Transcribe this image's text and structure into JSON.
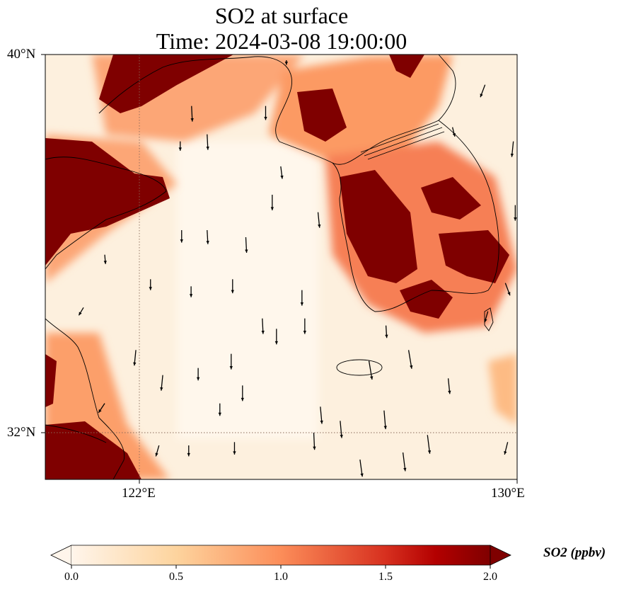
{
  "title": {
    "line1": "SO2 at surface",
    "line2": "Time: 2024-03-08 19:00:00"
  },
  "map": {
    "extent_lon": [
      120,
      130
    ],
    "extent_lat": [
      31,
      40
    ],
    "lat_labels": [
      "40°N",
      "32°N"
    ],
    "lon_labels": [
      "122°E",
      "130°E"
    ],
    "gridlines": {
      "lon": 122,
      "lat": 32
    },
    "background_color": "#fdf0de"
  },
  "colorbar": {
    "label": "SO2 (ppbv)",
    "ticks": [
      "0.0",
      "0.5",
      "1.0",
      "1.5",
      "2.0"
    ],
    "range": [
      0,
      2
    ],
    "extend": "both",
    "colormap": [
      "#fff5eb",
      "#fdd49e",
      "#fc8d59",
      "#d7301f",
      "#b30000",
      "#7f0000"
    ]
  },
  "chart_data": {
    "type": "map-vector-field",
    "variable": "SO2",
    "units": "ppbv",
    "wind_arrows": [
      [
        123.1,
        38.91,
        0.05,
        -1
      ],
      [
        123.43,
        38.31,
        0.05,
        -1
      ],
      [
        122.86,
        38.16,
        0,
        -0.6
      ],
      [
        124.67,
        38.91,
        0,
        -0.9
      ],
      [
        124.99,
        37.63,
        0.1,
        -0.8
      ],
      [
        124.81,
        37.03,
        0,
        -1
      ],
      [
        125.78,
        36.66,
        0.1,
        -1
      ],
      [
        122.89,
        36.28,
        0,
        -0.8
      ],
      [
        123.43,
        36.28,
        0.05,
        -0.9
      ],
      [
        124.25,
        36.13,
        0.05,
        -1
      ],
      [
        121.26,
        35.76,
        0.05,
        -0.6
      ],
      [
        122.23,
        35.24,
        0,
        -0.7
      ],
      [
        123.09,
        35.09,
        0,
        -0.7
      ],
      [
        123.97,
        35.24,
        0,
        -0.9
      ],
      [
        120.81,
        34.64,
        -0.3,
        -0.5
      ],
      [
        125.44,
        35.01,
        0,
        -1
      ],
      [
        124.6,
        34.41,
        0.05,
        -1
      ],
      [
        124.9,
        34.19,
        0,
        -1
      ],
      [
        125.5,
        34.41,
        0,
        -1
      ],
      [
        121.92,
        33.74,
        -0.1,
        -1
      ],
      [
        123.24,
        33.36,
        0,
        -0.8
      ],
      [
        123.94,
        33.66,
        0,
        -1
      ],
      [
        122.49,
        33.21,
        -0.1,
        -1
      ],
      [
        124.18,
        32.99,
        0,
        -1
      ],
      [
        123.7,
        32.61,
        0,
        -0.8
      ],
      [
        125.83,
        32.54,
        0.1,
        -1.1
      ],
      [
        127.18,
        32.46,
        0.1,
        -1.2
      ],
      [
        126.25,
        32.24,
        0.1,
        -1.1
      ],
      [
        125.69,
        31.99,
        0.05,
        -1.1
      ],
      [
        126.86,
        33.51,
        0.2,
        -1.2
      ],
      [
        127.7,
        33.74,
        0.2,
        -1.2
      ],
      [
        128.54,
        33.14,
        0.1,
        -1
      ],
      [
        128.1,
        31.94,
        0.15,
        -1.2
      ],
      [
        127.58,
        31.57,
        0.15,
        -1.2
      ],
      [
        126.67,
        31.42,
        0.15,
        -1.1
      ],
      [
        122.41,
        31.72,
        -0.2,
        -0.7
      ],
      [
        123.04,
        31.72,
        0,
        -0.7
      ],
      [
        124.01,
        31.79,
        0,
        -0.8
      ],
      [
        121.26,
        32.61,
        -0.4,
        -0.6
      ],
      [
        129.32,
        39.36,
        -0.3,
        -0.8
      ],
      [
        128.63,
        38.46,
        0.15,
        -0.6
      ],
      [
        129.92,
        38.16,
        -0.1,
        -1
      ],
      [
        129.96,
        36.81,
        0,
        -1
      ],
      [
        129.75,
        35.16,
        0.3,
        -0.8
      ],
      [
        129.38,
        34.56,
        -0.2,
        -0.7
      ],
      [
        129.8,
        31.79,
        -0.2,
        -0.8
      ],
      [
        127.22,
        34.26,
        0.05,
        -0.8
      ],
      [
        125.11,
        39.88,
        0,
        -0.3
      ]
    ]
  }
}
